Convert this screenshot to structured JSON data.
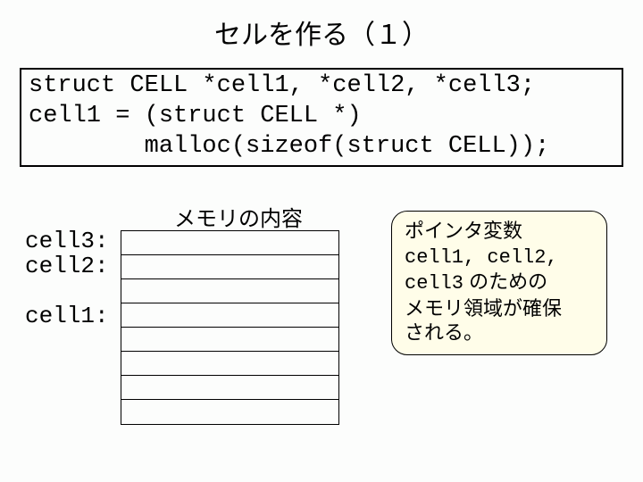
{
  "title": "セルを作る（１）",
  "code": {
    "line1": "struct CELL *cell1, *cell2, *cell3;",
    "line2": "cell1 = (struct CELL *)",
    "line3": "        malloc(sizeof(struct CELL));"
  },
  "memory_label": "メモリの内容",
  "cell_labels": {
    "c3": "cell3:",
    "c2": "cell2:",
    "c1": "cell1:"
  },
  "memory_table": {
    "rows": 8
  },
  "callout": {
    "line1": "ポインタ変数",
    "line2a": "cell1, cell2,",
    "line2b": "cell3",
    "line2c": " のための",
    "line3": "メモリ領域が確保",
    "line4": "される。"
  },
  "colors": {
    "callout_bg": "#fffde9",
    "page_bg": "#fcfdfc",
    "border": "#000000"
  }
}
